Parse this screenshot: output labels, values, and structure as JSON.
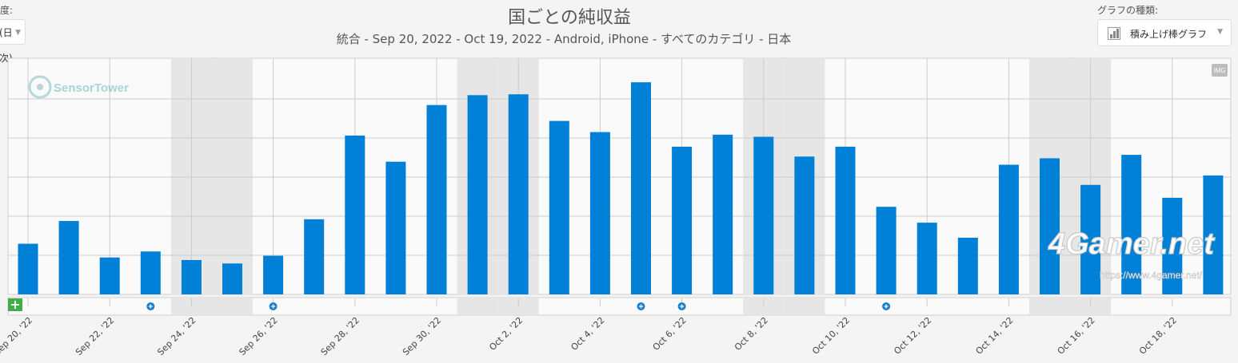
{
  "header": {
    "left_label": "度:",
    "left_dropdown_value": "(日次)",
    "title": "国ごとの純収益",
    "subtitle": "統合 - Sep 20, 2022 - Oct 19, 2022 - Android, iPhone - すべてのカテゴリ - 日本",
    "chart_type_label": "グラフの種類:",
    "chart_type_value": "積み上げ棒グラフ"
  },
  "watermarks": {
    "sensortower": "SensorTower",
    "site": "4Gamer.net",
    "url": "https://www.4gamer.net/"
  },
  "img_button": "IMG",
  "colors": {
    "bar": "#0080d6",
    "shade": "#e6e6e6",
    "grid": "#cccccc",
    "marker": "#1a7fd0"
  },
  "chart_data": {
    "type": "bar",
    "title": "国ごとの純収益",
    "subtitle": "統合 - Sep 20, 2022 - Oct 19, 2022 - Android, iPhone - すべてのカテゴリ - 日本",
    "categories": [
      "Sep 20",
      "Sep 21",
      "Sep 22",
      "Sep 23",
      "Sep 24",
      "Sep 25",
      "Sep 26",
      "Sep 27",
      "Sep 28",
      "Sep 29",
      "Sep 30",
      "Oct 1",
      "Oct 2",
      "Oct 3",
      "Oct 4",
      "Oct 5",
      "Oct 6",
      "Oct 7",
      "Oct 8",
      "Oct 9",
      "Oct 10",
      "Oct 11",
      "Oct 12",
      "Oct 13",
      "Oct 14",
      "Oct 15",
      "Oct 16",
      "Oct 17",
      "Oct 18",
      "Oct 19"
    ],
    "x_tick_labels": [
      "Sep 20, '22",
      "Sep 22, '22",
      "Sep 24, '22",
      "Sep 26, '22",
      "Sep 28, '22",
      "Sep 30, '22",
      "Oct 2, '22",
      "Oct 4, '22",
      "Oct 6, '22",
      "Oct 8, '22",
      "Oct 10, '22",
      "Oct 12, '22",
      "Oct 14, '22",
      "Oct 16, '22",
      "Oct 18, '22"
    ],
    "values": [
      1.18,
      1.71,
      0.86,
      1.0,
      0.8,
      0.72,
      0.9,
      1.75,
      3.7,
      3.09,
      4.41,
      4.64,
      4.66,
      4.04,
      3.78,
      4.94,
      3.44,
      3.72,
      3.67,
      3.21,
      3.44,
      2.04,
      1.67,
      1.32,
      3.02,
      3.17,
      2.55,
      3.25,
      2.25,
      2.77
    ],
    "ylim": [
      0,
      5.5
    ],
    "y_gridlines": 5,
    "weekend_shading": [
      "Sep 24",
      "Sep 25",
      "Oct 1",
      "Oct 2",
      "Oct 8",
      "Oct 9",
      "Oct 15",
      "Oct 16"
    ],
    "event_markers": [
      "Sep 23",
      "Sep 26",
      "Oct 5",
      "Oct 6",
      "Oct 11"
    ],
    "grid": true,
    "legend": "none"
  }
}
